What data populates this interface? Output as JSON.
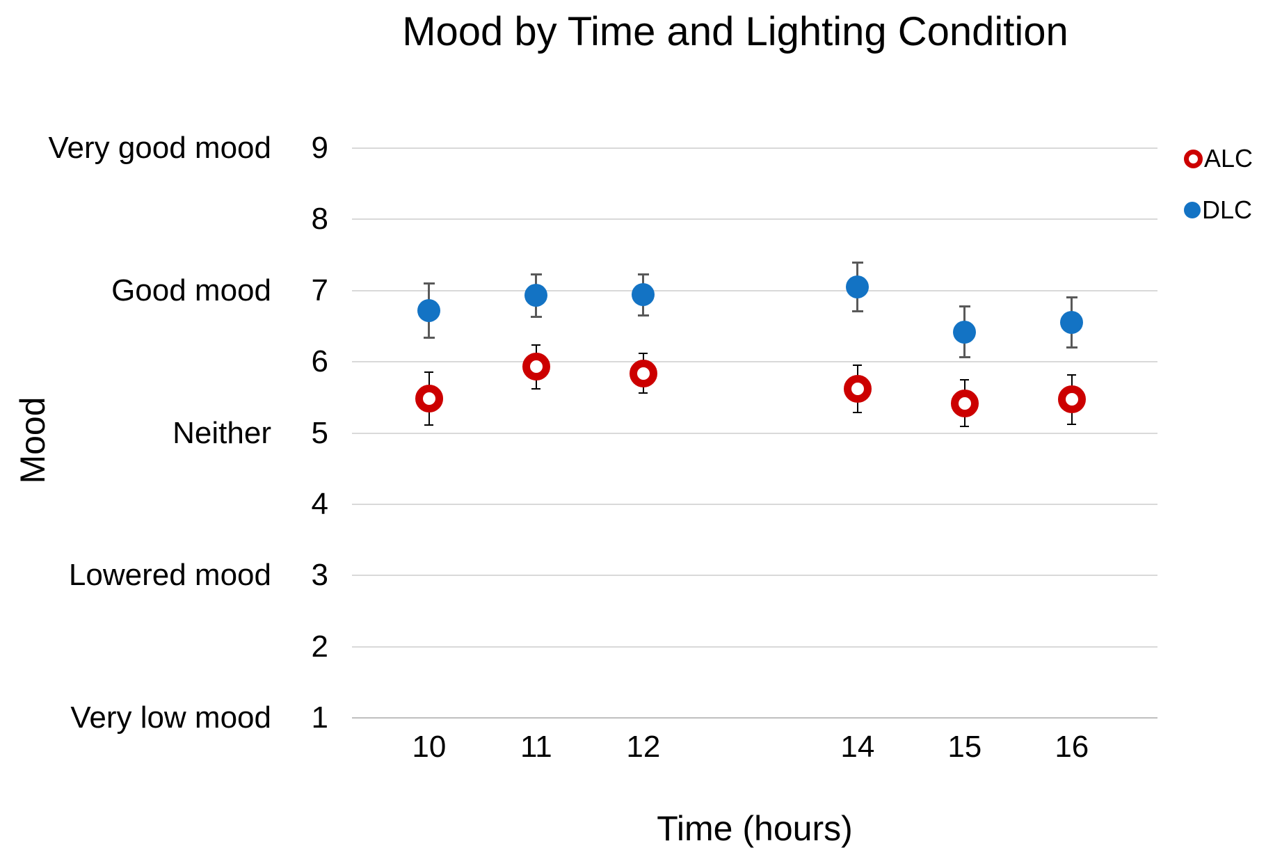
{
  "chart_data": {
    "type": "scatter",
    "title": "Mood by Time and Lighting Condition",
    "xlabel": "Time (hours)",
    "ylabel": "Mood",
    "x": [
      10,
      11,
      12,
      14,
      15,
      16
    ],
    "x_tick_labels": [
      "10",
      "11",
      "12",
      "14",
      "15",
      "16"
    ],
    "xlim": [
      9.28,
      16.8
    ],
    "ylim": [
      1,
      9
    ],
    "y_ticks": [
      1,
      2,
      3,
      4,
      5,
      6,
      7,
      8,
      9
    ],
    "y_category_labels": [
      {
        "value": 9,
        "label": "Very good mood"
      },
      {
        "value": 7,
        "label": "Good mood"
      },
      {
        "value": 5,
        "label": "Neither"
      },
      {
        "value": 3,
        "label": "Lowered mood"
      },
      {
        "value": 1,
        "label": "Very low mood"
      }
    ],
    "grid": "horizontal",
    "legend_position": "top-right",
    "series": [
      {
        "name": "ALC",
        "marker": "open-circle",
        "color": "#CC0000",
        "error_bar_color": "#000000",
        "values": [
          5.48,
          5.93,
          5.84,
          5.62,
          5.42,
          5.47
        ],
        "error": [
          0.37,
          0.31,
          0.28,
          0.33,
          0.33,
          0.35
        ]
      },
      {
        "name": "DLC",
        "marker": "filled-circle",
        "color": "#1373C4",
        "error_bar_color": "#595959",
        "values": [
          6.72,
          6.93,
          6.94,
          7.05,
          6.42,
          6.55
        ],
        "error": [
          0.38,
          0.3,
          0.29,
          0.34,
          0.36,
          0.35
        ]
      }
    ]
  },
  "colors": {
    "background": "#FFFFFF",
    "gridline": "#D9D9D9",
    "axis_line": "#BFBFBF",
    "text": "#000000"
  }
}
